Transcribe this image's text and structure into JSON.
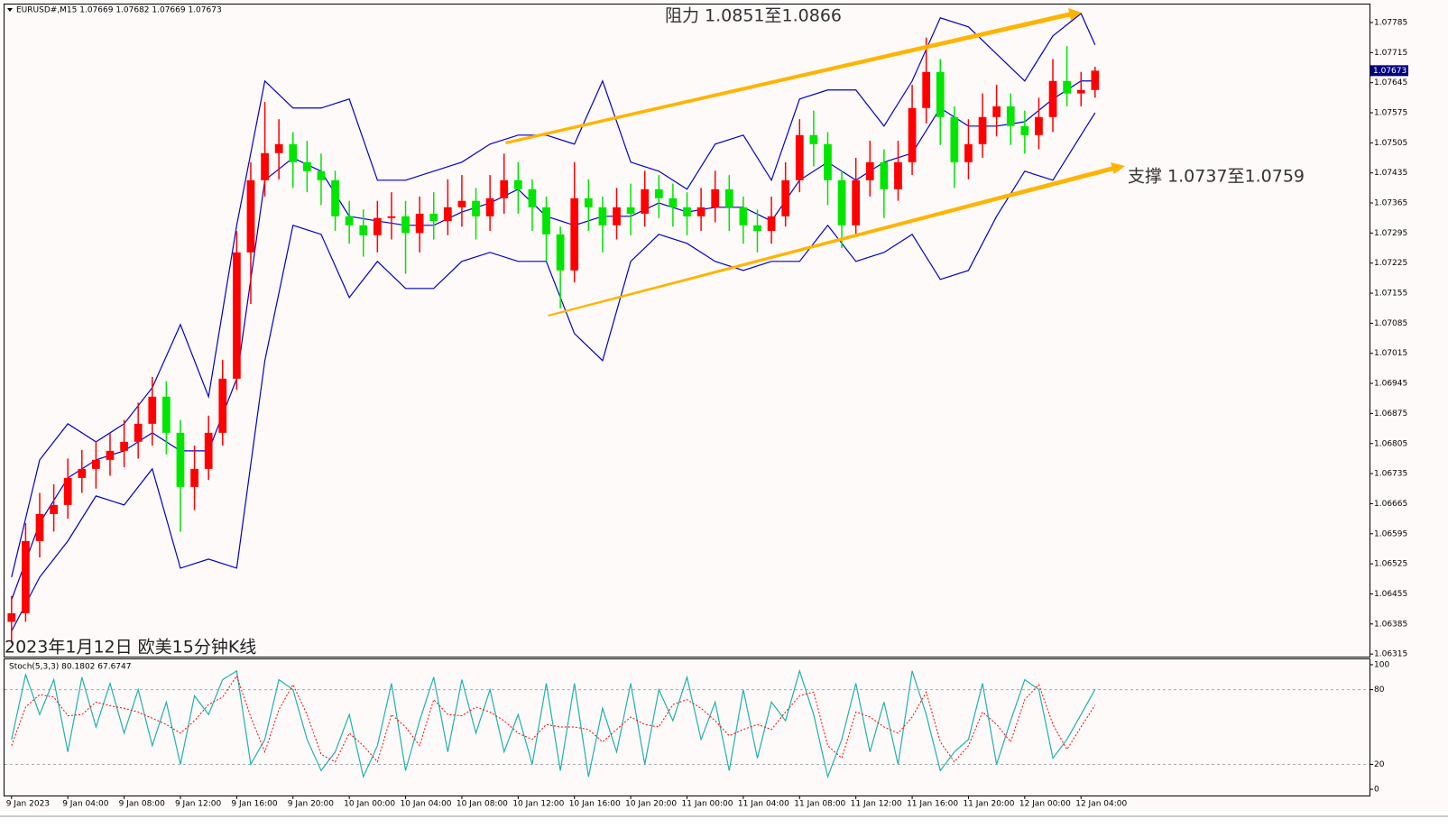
{
  "chart_data": [
    {
      "type": "candlestick",
      "title": "EURUSD#,M15  1.07669 1.07682 1.07669 1.07673",
      "caption": "2023年1月12日 欧美15分钟K线",
      "annotations": [
        "阻力 1.0851至1.0866",
        "支撑 1.0737至1.0759"
      ],
      "x": [
        0,
        1,
        2,
        3,
        4,
        5,
        6,
        7,
        8,
        9,
        10,
        11,
        12,
        13,
        14,
        15,
        16,
        17,
        18,
        19,
        20,
        21,
        22,
        23,
        24,
        25,
        26,
        27,
        28,
        29,
        30,
        31,
        32,
        33,
        34,
        35,
        36,
        37,
        38,
        39,
        40,
        41,
        42,
        43,
        44,
        45,
        46,
        47,
        48,
        49,
        50,
        51,
        52,
        53,
        54,
        55,
        56,
        57,
        58,
        59,
        60,
        61,
        62,
        63,
        64,
        65,
        66,
        67,
        68,
        69,
        70,
        71,
        72,
        73,
        74,
        75,
        76,
        77
      ],
      "open": [
        1.0639,
        1.0641,
        1.06578,
        1.06641,
        1.06662,
        1.06725,
        1.06746,
        1.06767,
        1.06788,
        1.06809,
        1.06851,
        1.06914,
        1.0683,
        1.06704,
        1.06746,
        1.0683,
        1.06956,
        1.0725,
        1.07418,
        1.07481,
        1.07502,
        1.0746,
        1.07439,
        1.07418,
        1.07334,
        1.07313,
        1.0729,
        1.0733,
        1.07334,
        1.07295,
        1.0734,
        1.07323,
        1.07355,
        1.0737,
        1.07334,
        1.07376,
        1.07418,
        1.07397,
        1.07355,
        1.07292,
        1.07208,
        1.07376,
        1.07355,
        1.07313,
        1.07355,
        1.0734,
        1.07397,
        1.07376,
        1.07355,
        1.07334,
        1.07355,
        1.07397,
        1.07355,
        1.07313,
        1.073,
        1.07334,
        1.07418,
        1.07523,
        1.07502,
        1.07418,
        1.07313,
        1.07418,
        1.0746,
        1.07397,
        1.0746,
        1.07586,
        1.0767,
        1.07565,
        1.0746,
        1.07502,
        1.07565,
        1.0759,
        1.07544,
        1.07523,
        1.07565,
        1.07649,
        1.0762,
        1.07628
      ],
      "high": [
        1.0645,
        1.0662,
        1.0669,
        1.0671,
        1.0677,
        1.0679,
        1.0681,
        1.0683,
        1.0686,
        1.069,
        1.0696,
        1.0695,
        1.0686,
        1.068,
        1.0687,
        1.07,
        1.073,
        1.0746,
        1.076,
        1.0756,
        1.0753,
        1.0751,
        1.0748,
        1.0744,
        1.0737,
        1.0735,
        1.0737,
        1.0739,
        1.0737,
        1.0738,
        1.0739,
        1.0742,
        1.0743,
        1.074,
        1.0743,
        1.0748,
        1.0746,
        1.0742,
        1.0738,
        1.0731,
        1.0746,
        1.0742,
        1.0738,
        1.074,
        1.0741,
        1.0744,
        1.0743,
        1.0741,
        1.0739,
        1.074,
        1.0744,
        1.0743,
        1.0738,
        1.0735,
        1.0738,
        1.0746,
        1.0756,
        1.0758,
        1.0753,
        1.0744,
        1.0747,
        1.0751,
        1.0749,
        1.0751,
        1.0764,
        1.0775,
        1.077,
        1.0759,
        1.0756,
        1.0762,
        1.0764,
        1.0762,
        1.0758,
        1.0761,
        1.077,
        1.0773,
        1.0767,
        1.07682
      ],
      "low": [
        1.0634,
        1.0639,
        1.0654,
        1.066,
        1.0663,
        1.0669,
        1.067,
        1.0673,
        1.0675,
        1.0677,
        1.068,
        1.0678,
        1.066,
        1.0665,
        1.0672,
        1.068,
        1.0693,
        1.0713,
        1.0738,
        1.0742,
        1.074,
        1.0739,
        1.0736,
        1.073,
        1.0727,
        1.0724,
        1.0725,
        1.0728,
        1.072,
        1.0725,
        1.0728,
        1.0729,
        1.0731,
        1.0728,
        1.073,
        1.0734,
        1.0734,
        1.073,
        1.0723,
        1.0712,
        1.0718,
        1.073,
        1.0725,
        1.0728,
        1.0729,
        1.0731,
        1.0733,
        1.0731,
        1.0729,
        1.073,
        1.0732,
        1.073,
        1.0727,
        1.0725,
        1.0727,
        1.0731,
        1.0739,
        1.0745,
        1.0736,
        1.0726,
        1.0729,
        1.0738,
        1.0733,
        1.0737,
        1.0743,
        1.0755,
        1.075,
        1.074,
        1.0742,
        1.0747,
        1.0752,
        1.075,
        1.0748,
        1.0749,
        1.0753,
        1.0759,
        1.0759,
        1.0761
      ],
      "close": [
        1.0641,
        1.06578,
        1.06641,
        1.06662,
        1.06725,
        1.06746,
        1.06767,
        1.06788,
        1.06809,
        1.06851,
        1.06914,
        1.0683,
        1.06704,
        1.06746,
        1.0683,
        1.06956,
        1.0725,
        1.07418,
        1.07481,
        1.07502,
        1.0746,
        1.07439,
        1.07418,
        1.07334,
        1.07313,
        1.0729,
        1.0733,
        1.07334,
        1.07295,
        1.0734,
        1.07323,
        1.07355,
        1.0737,
        1.07334,
        1.07376,
        1.07418,
        1.07397,
        1.07355,
        1.07292,
        1.07208,
        1.07376,
        1.07355,
        1.07313,
        1.07355,
        1.0734,
        1.07397,
        1.07376,
        1.07355,
        1.07334,
        1.07355,
        1.07397,
        1.07355,
        1.07313,
        1.073,
        1.07334,
        1.07418,
        1.07523,
        1.07502,
        1.07418,
        1.07313,
        1.07418,
        1.0746,
        1.07397,
        1.0746,
        1.07586,
        1.0767,
        1.07565,
        1.0746,
        1.07502,
        1.07565,
        1.0759,
        1.07544,
        1.07523,
        1.07565,
        1.07649,
        1.0762,
        1.07628,
        1.07673
      ],
      "up_color": "#ff0000",
      "down_color": "#00e600",
      "bands": {
        "x": [
          0,
          2,
          4,
          6,
          8,
          10,
          12,
          14,
          16,
          18,
          20,
          22,
          24,
          26,
          28,
          30,
          32,
          34,
          36,
          38,
          40,
          42,
          44,
          46,
          48,
          50,
          52,
          54,
          56,
          58,
          60,
          62,
          64,
          66,
          68,
          70,
          72,
          74,
          76,
          77
        ],
        "color": "#0000cd",
        "lines": [
          [
            1.06494,
            1.06767,
            1.06851,
            1.06809,
            1.06851,
            1.06935,
            1.07082,
            1.06914,
            1.07313,
            1.07649,
            1.07586,
            1.07586,
            1.07607,
            1.07418,
            1.07418,
            1.07439,
            1.0746,
            1.07502,
            1.07523,
            1.07523,
            1.07502,
            1.07649,
            1.0746,
            1.07439,
            1.07397,
            1.07502,
            1.07523,
            1.07418,
            1.07607,
            1.07628,
            1.07628,
            1.07544,
            1.07649,
            1.07796,
            1.07775,
            1.07712,
            1.07649,
            1.07754,
            1.07806,
            1.07733
          ],
          [
            1.06441,
            1.0662,
            1.06725,
            1.06767,
            1.06788,
            1.0683,
            1.06788,
            1.06788,
            1.06956,
            1.07418,
            1.0747,
            1.07439,
            1.07334,
            1.07323,
            1.07313,
            1.07313,
            1.07344,
            1.07365,
            1.07397,
            1.07334,
            1.07313,
            1.07334,
            1.07334,
            1.07365,
            1.07344,
            1.07355,
            1.07355,
            1.07323,
            1.07418,
            1.0746,
            1.07418,
            1.0746,
            1.07481,
            1.07586,
            1.07544,
            1.07544,
            1.07554,
            1.07607,
            1.07649,
            1.07649
          ],
          [
            1.06368,
            1.06494,
            1.06578,
            1.06683,
            1.06662,
            1.06746,
            1.06515,
            1.06536,
            1.06515,
            1.06998,
            1.07313,
            1.07292,
            1.07145,
            1.07229,
            1.07166,
            1.07166,
            1.07229,
            1.0725,
            1.07229,
            1.07229,
            1.07061,
            1.06998,
            1.07229,
            1.07292,
            1.07271,
            1.07229,
            1.07208,
            1.07229,
            1.07229,
            1.07313,
            1.07229,
            1.0725,
            1.07292,
            1.07187,
            1.07208,
            1.07334,
            1.07439,
            1.07418,
            1.07523,
            1.07575
          ]
        ]
      },
      "current_price": 1.07673,
      "current_color": "#000080",
      "xlim": [
        -0.5,
        96.5
      ],
      "ylim": [
        1.06309,
        1.07827
      ],
      "yticks": [
        1.07785,
        1.07715,
        1.07645,
        1.07575,
        1.07505,
        1.07435,
        1.07365,
        1.07295,
        1.07225,
        1.07155,
        1.07085,
        1.07015,
        1.06945,
        1.06875,
        1.06805,
        1.06735,
        1.06665,
        1.06595,
        1.06525,
        1.06455,
        1.06385,
        1.06315
      ]
    },
    {
      "type": "line",
      "title": "Stoch(5,3,3) 80.1802 67.6747",
      "x": [
        0,
        1,
        2,
        3,
        4,
        5,
        6,
        7,
        8,
        9,
        10,
        11,
        12,
        13,
        14,
        15,
        16,
        17,
        18,
        19,
        20,
        21,
        22,
        23,
        24,
        25,
        26,
        27,
        28,
        29,
        30,
        31,
        32,
        33,
        34,
        35,
        36,
        37,
        38,
        39,
        40,
        41,
        42,
        43,
        44,
        45,
        46,
        47,
        48,
        49,
        50,
        51,
        52,
        53,
        54,
        55,
        56,
        57,
        58,
        59,
        60,
        61,
        62,
        63,
        64,
        65,
        66,
        67,
        68,
        69,
        70,
        71,
        72,
        73,
        74,
        75,
        76,
        77
      ],
      "series": [
        {
          "color": "#20b2aa",
          "dashed": false,
          "values": [
            40,
            92,
            60,
            88,
            30,
            90,
            50,
            85,
            45,
            80,
            35,
            70,
            20,
            75,
            60,
            88,
            95,
            20,
            40,
            88,
            80,
            40,
            15,
            30,
            60,
            10,
            35,
            85,
            15,
            55,
            90,
            30,
            88,
            45,
            80,
            30,
            60,
            20,
            85,
            15,
            85,
            10,
            65,
            30,
            85,
            20,
            80,
            55,
            90,
            40,
            70,
            15,
            80,
            25,
            70,
            55,
            95,
            60,
            10,
            40,
            85,
            30,
            70,
            20,
            95,
            60,
            15,
            30,
            40,
            85,
            20,
            55,
            88,
            80,
            25,
            40,
            60,
            80.18
          ]
        },
        {
          "color": "#ff0000",
          "dashed": true,
          "values": [
            35,
            66,
            76,
            74,
            59,
            60,
            70,
            67,
            65,
            62,
            57,
            52,
            45,
            55,
            68,
            74,
            91,
            58,
            30,
            64,
            84,
            60,
            28,
            22,
            45,
            35,
            22,
            60,
            50,
            35,
            72,
            60,
            59,
            66,
            62,
            55,
            45,
            40,
            52,
            50,
            50,
            48,
            38,
            48,
            58,
            52,
            50,
            68,
            72,
            65,
            55,
            43,
            48,
            52,
            48,
            62,
            75,
            78,
            35,
            25,
            62,
            58,
            50,
            45,
            58,
            78,
            38,
            22,
            35,
            62,
            52,
            38,
            72,
            84,
            52,
            32,
            50,
            67.67
          ]
        }
      ],
      "levels": [
        80,
        20
      ],
      "xlim": [
        -0.5,
        96.5
      ],
      "xticks": [
        {
          "value": 0,
          "label": "9 Jan 2023"
        },
        {
          "value": 4,
          "label": "9 Jan 04:00"
        },
        {
          "value": 8,
          "label": "9 Jan 08:00"
        },
        {
          "value": 12,
          "label": "9 Jan 12:00"
        },
        {
          "value": 16,
          "label": "9 Jan 16:00"
        },
        {
          "value": 20,
          "label": "9 Jan 20:00"
        },
        {
          "value": 24,
          "label": "10 Jan 00:00"
        },
        {
          "value": 28,
          "label": "10 Jan 04:00"
        },
        {
          "value": 32,
          "label": "10 Jan 08:00"
        },
        {
          "value": 36,
          "label": "10 Jan 12:00"
        },
        {
          "value": 40,
          "label": "10 Jan 16:00"
        },
        {
          "value": 44,
          "label": "10 Jan 20:00"
        },
        {
          "value": 48,
          "label": "11 Jan 00:00"
        },
        {
          "value": 52,
          "label": "11 Jan 04:00"
        },
        {
          "value": 56,
          "label": "11 Jan 08:00"
        },
        {
          "value": 60,
          "label": "11 Jan 12:00"
        },
        {
          "value": 64,
          "label": "11 Jan 16:00"
        },
        {
          "value": 68,
          "label": "11 Jan 20:00"
        },
        {
          "value": 72,
          "label": "12 Jan 00:00"
        },
        {
          "value": 76,
          "label": "12 Jan 04:00"
        }
      ],
      "ylim": [
        -5,
        104.3
      ],
      "yticks": [
        100,
        80,
        20,
        0
      ]
    }
  ]
}
